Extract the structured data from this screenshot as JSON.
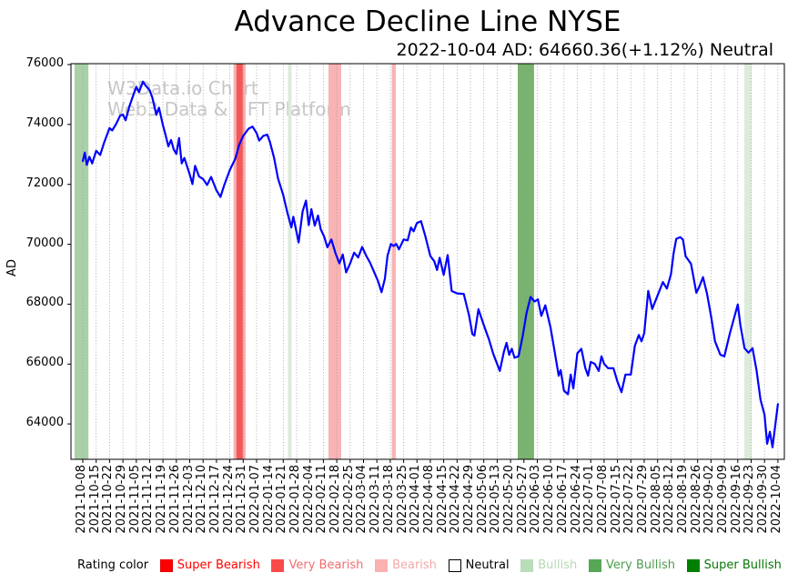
{
  "title": "Advance Decline Line NYSE",
  "subtitle": "2022-10-04 AD: 64660.36(+1.12%) Neutral",
  "watermark": {
    "line1": "W3Data.io Chart",
    "line2": "Web3 Data & NFT Platform"
  },
  "legend": {
    "title": "Rating color",
    "items": [
      {
        "label": "Super Bearish",
        "square": "#ff0000",
        "text": "#ff0000",
        "border": "#e00000"
      },
      {
        "label": "Very Bearish",
        "square": "#fa4b4b",
        "text": "#f16e6e",
        "border": "#fa4b4b"
      },
      {
        "label": "Bearish",
        "square": "#f9b1b1",
        "text": "#f2a9a9",
        "border": "#f9b1b1"
      },
      {
        "label": "Neutral",
        "square": "#ffffff",
        "text": "#000000",
        "border": "#000000"
      },
      {
        "label": "Bullish",
        "square": "#b9ddb9",
        "text": "#b4d9b4",
        "border": "#b9ddb9"
      },
      {
        "label": "Very Bullish",
        "square": "#57a757",
        "text": "#4d9d4d",
        "border": "#57a757"
      },
      {
        "label": "Super Bullish",
        "square": "#008000",
        "text": "#067806",
        "border": "#008000"
      }
    ]
  },
  "chart_data": {
    "type": "line",
    "title": "Advance Decline Line NYSE",
    "xlabel": "",
    "ylabel": "AD",
    "grid": "vertical-dotted",
    "legend_position": "bottom",
    "line_color": "#0000ff",
    "line_width": 2.2,
    "x_index_range": [
      -0.885,
      52.485
    ],
    "y_range": [
      62820,
      76030
    ],
    "yticks": [
      64000,
      66000,
      68000,
      70000,
      72000,
      74000,
      76000
    ],
    "x_tick_labels": [
      "2021-10-08",
      "2021-10-15",
      "2021-10-22",
      "2021-10-29",
      "2021-11-05",
      "2021-11-12",
      "2021-11-19",
      "2021-11-26",
      "2021-12-03",
      "2021-12-10",
      "2021-12-17",
      "2021-12-24",
      "2021-12-31",
      "2022-01-07",
      "2022-01-14",
      "2022-01-21",
      "2022-01-28",
      "2022-02-04",
      "2022-02-11",
      "2022-02-18",
      "2022-02-25",
      "2022-03-04",
      "2022-03-11",
      "2022-03-18",
      "2022-03-25",
      "2022-04-01",
      "2022-04-08",
      "2022-04-15",
      "2022-04-22",
      "2022-04-29",
      "2022-05-06",
      "2022-05-13",
      "2022-05-20",
      "2022-05-27",
      "2022-06-03",
      "2022-06-10",
      "2022-06-17",
      "2022-06-24",
      "2022-07-01",
      "2022-07-08",
      "2022-07-15",
      "2022-07-22",
      "2022-07-29",
      "2022-08-05",
      "2022-08-12",
      "2022-08-19",
      "2022-08-26",
      "2022-09-02",
      "2022-09-09",
      "2022-09-16",
      "2022-09-23",
      "2022-09-30",
      "2022-10-04"
    ],
    "bands": [
      {
        "rating": "Bullish",
        "x0": -0.62,
        "x1": 0.42,
        "color": "#aad0a8"
      },
      {
        "rating": "Bearish",
        "x0": 11.28,
        "x1": 12.18,
        "color": "#f8b0b0"
      },
      {
        "rating": "Very Bearish",
        "x0": 11.5,
        "x1": 11.97,
        "color": "#f25858"
      },
      {
        "rating": "Bullish",
        "x0": 15.35,
        "x1": 15.62,
        "color": "#dcebdc"
      },
      {
        "rating": "Bearish",
        "x0": 18.38,
        "x1": 19.33,
        "color": "#f8b4b4"
      },
      {
        "rating": "Bearish",
        "x0": 23.11,
        "x1": 23.42,
        "color": "#f8b4b4"
      },
      {
        "rating": "Very Bullish",
        "x0": 32.54,
        "x1": 33.76,
        "color": "#79b36f"
      },
      {
        "rating": "Bullish",
        "x0": 49.49,
        "x1": 50.03,
        "color": "#dcebdc"
      }
    ],
    "last_point": {
      "date": "2022-10-04",
      "value": 64660.36,
      "change_pct": "+1.12%",
      "rating": "Neutral"
    },
    "series": [
      {
        "name": "AD",
        "points": [
          [
            0,
            72780
          ],
          [
            0.15,
            73060
          ],
          [
            0.3,
            72650
          ],
          [
            0.5,
            72920
          ],
          [
            0.7,
            72700
          ],
          [
            1,
            73120
          ],
          [
            1.3,
            72980
          ],
          [
            1.6,
            73400
          ],
          [
            2,
            73880
          ],
          [
            2.2,
            73800
          ],
          [
            2.5,
            74020
          ],
          [
            2.8,
            74300
          ],
          [
            3,
            74330
          ],
          [
            3.2,
            74140
          ],
          [
            3.5,
            74620
          ],
          [
            3.8,
            75000
          ],
          [
            4,
            75260
          ],
          [
            4.2,
            75080
          ],
          [
            4.5,
            75430
          ],
          [
            4.7,
            75300
          ],
          [
            5,
            75140
          ],
          [
            5.2,
            74900
          ],
          [
            5.5,
            74320
          ],
          [
            5.7,
            74560
          ],
          [
            6,
            73970
          ],
          [
            6.2,
            73630
          ],
          [
            6.4,
            73270
          ],
          [
            6.6,
            73480
          ],
          [
            6.8,
            73170
          ],
          [
            7,
            73010
          ],
          [
            7.2,
            73550
          ],
          [
            7.4,
            72700
          ],
          [
            7.6,
            72880
          ],
          [
            8,
            72330
          ],
          [
            8.2,
            72010
          ],
          [
            8.4,
            72620
          ],
          [
            8.7,
            72260
          ],
          [
            9,
            72180
          ],
          [
            9.3,
            71980
          ],
          [
            9.6,
            72250
          ],
          [
            10,
            71800
          ],
          [
            10.3,
            71580
          ],
          [
            10.6,
            72000
          ],
          [
            11,
            72480
          ],
          [
            11.4,
            72850
          ],
          [
            11.7,
            73320
          ],
          [
            12,
            73620
          ],
          [
            12.4,
            73860
          ],
          [
            12.7,
            73930
          ],
          [
            13,
            73710
          ],
          [
            13.2,
            73460
          ],
          [
            13.5,
            73620
          ],
          [
            13.8,
            73660
          ],
          [
            14,
            73410
          ],
          [
            14.3,
            72900
          ],
          [
            14.6,
            72200
          ],
          [
            15,
            71640
          ],
          [
            15.3,
            71060
          ],
          [
            15.6,
            70560
          ],
          [
            15.75,
            70920
          ],
          [
            16.15,
            70060
          ],
          [
            16.45,
            71100
          ],
          [
            16.7,
            71460
          ],
          [
            16.9,
            70640
          ],
          [
            17.1,
            71170
          ],
          [
            17.35,
            70620
          ],
          [
            17.6,
            70960
          ],
          [
            17.8,
            70500
          ],
          [
            18.05,
            70260
          ],
          [
            18.3,
            69900
          ],
          [
            18.6,
            70160
          ],
          [
            18.9,
            69710
          ],
          [
            19.2,
            69360
          ],
          [
            19.45,
            69660
          ],
          [
            19.7,
            69060
          ],
          [
            20,
            69360
          ],
          [
            20.3,
            69720
          ],
          [
            20.6,
            69560
          ],
          [
            20.9,
            69910
          ],
          [
            21.2,
            69620
          ],
          [
            21.5,
            69380
          ],
          [
            21.8,
            69070
          ],
          [
            22.1,
            68760
          ],
          [
            22.35,
            68400
          ],
          [
            22.6,
            68850
          ],
          [
            22.8,
            69620
          ],
          [
            23.05,
            70010
          ],
          [
            23.25,
            69940
          ],
          [
            23.45,
            70010
          ],
          [
            23.65,
            69830
          ],
          [
            24,
            70160
          ],
          [
            24.3,
            70130
          ],
          [
            24.55,
            70560
          ],
          [
            24.75,
            70430
          ],
          [
            25,
            70710
          ],
          [
            25.3,
            70770
          ],
          [
            25.6,
            70310
          ],
          [
            26,
            69610
          ],
          [
            26.3,
            69430
          ],
          [
            26.5,
            69140
          ],
          [
            26.7,
            69550
          ],
          [
            27,
            68980
          ],
          [
            27.3,
            69640
          ],
          [
            27.6,
            68440
          ],
          [
            28,
            68360
          ],
          [
            28.5,
            68340
          ],
          [
            28.9,
            67620
          ],
          [
            29.15,
            67000
          ],
          [
            29.3,
            66950
          ],
          [
            29.6,
            67830
          ],
          [
            30,
            67300
          ],
          [
            30.4,
            66800
          ],
          [
            30.7,
            66350
          ],
          [
            31.2,
            65770
          ],
          [
            31.5,
            66400
          ],
          [
            31.7,
            66710
          ],
          [
            31.9,
            66310
          ],
          [
            32.1,
            66510
          ],
          [
            32.3,
            66210
          ],
          [
            32.6,
            66260
          ],
          [
            32.9,
            66910
          ],
          [
            33.2,
            67710
          ],
          [
            33.5,
            68240
          ],
          [
            33.8,
            68090
          ],
          [
            34.05,
            68160
          ],
          [
            34.3,
            67610
          ],
          [
            34.6,
            67960
          ],
          [
            35,
            67210
          ],
          [
            35.3,
            66410
          ],
          [
            35.6,
            65610
          ],
          [
            35.75,
            65800
          ],
          [
            36,
            65110
          ],
          [
            36.3,
            64990
          ],
          [
            36.5,
            65650
          ],
          [
            36.7,
            65190
          ],
          [
            37,
            66360
          ],
          [
            37.3,
            66510
          ],
          [
            37.6,
            65860
          ],
          [
            37.8,
            65610
          ],
          [
            38,
            66070
          ],
          [
            38.3,
            66010
          ],
          [
            38.6,
            65770
          ],
          [
            38.8,
            66260
          ],
          [
            39,
            66010
          ],
          [
            39.3,
            65860
          ],
          [
            39.7,
            65860
          ],
          [
            40,
            65410
          ],
          [
            40.3,
            65060
          ],
          [
            40.6,
            65650
          ],
          [
            41,
            65650
          ],
          [
            41.3,
            66610
          ],
          [
            41.6,
            66970
          ],
          [
            41.8,
            66760
          ],
          [
            42,
            67030
          ],
          [
            42.3,
            68440
          ],
          [
            42.6,
            67840
          ],
          [
            43.1,
            68400
          ],
          [
            43.4,
            68740
          ],
          [
            43.7,
            68520
          ],
          [
            44,
            69000
          ],
          [
            44.2,
            69700
          ],
          [
            44.4,
            70180
          ],
          [
            44.7,
            70240
          ],
          [
            44.9,
            70150
          ],
          [
            45.1,
            69600
          ],
          [
            45.5,
            69350
          ],
          [
            45.9,
            68380
          ],
          [
            46.1,
            68560
          ],
          [
            46.4,
            68900
          ],
          [
            46.7,
            68350
          ],
          [
            47,
            67610
          ],
          [
            47.3,
            66760
          ],
          [
            47.7,
            66310
          ],
          [
            48,
            66260
          ],
          [
            48.4,
            67010
          ],
          [
            49,
            67990
          ],
          [
            49.2,
            67300
          ],
          [
            49.5,
            66530
          ],
          [
            49.8,
            66380
          ],
          [
            50.1,
            66530
          ],
          [
            50.4,
            65800
          ],
          [
            50.7,
            64810
          ],
          [
            51,
            64310
          ],
          [
            51.2,
            63340
          ],
          [
            51.4,
            63740
          ],
          [
            51.6,
            63220
          ],
          [
            52,
            64660
          ]
        ]
      }
    ]
  }
}
